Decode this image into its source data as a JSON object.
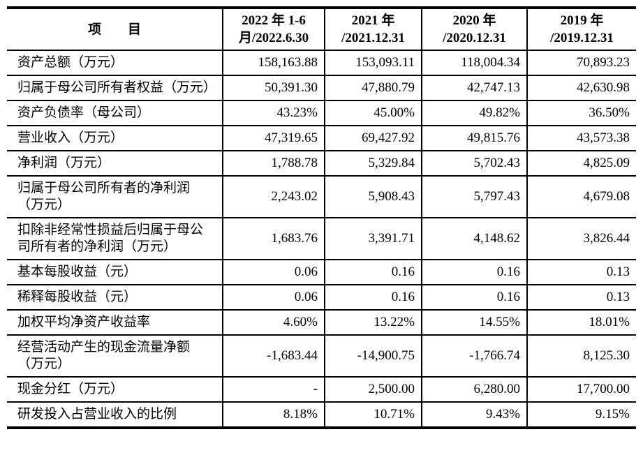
{
  "table": {
    "header": {
      "item_label": "项　　目",
      "periods": [
        "2022 年 1-6\n月/2022.6.30",
        "2021 年\n/2021.12.31",
        "2020 年\n/2020.12.31",
        "2019 年\n/2019.12.31"
      ]
    },
    "rows": [
      {
        "label": "资产总额（万元）",
        "values": [
          "158,163.88",
          "153,093.11",
          "118,004.34",
          "70,893.23"
        ]
      },
      {
        "label": "归属于母公司所有者权益（万元）",
        "values": [
          "50,391.30",
          "47,880.79",
          "42,747.13",
          "42,630.98"
        ]
      },
      {
        "label": "资产负债率（母公司）",
        "values": [
          "43.23%",
          "45.00%",
          "49.82%",
          "36.50%"
        ]
      },
      {
        "label": "营业收入（万元）",
        "values": [
          "47,319.65",
          "69,427.92",
          "49,815.76",
          "43,573.38"
        ]
      },
      {
        "label": "净利润（万元）",
        "values": [
          "1,788.78",
          "5,329.84",
          "5,702.43",
          "4,825.09"
        ]
      },
      {
        "label": "归属于母公司所有者的净利润（万元）",
        "values": [
          "2,243.02",
          "5,908.43",
          "5,797.43",
          "4,679.08"
        ]
      },
      {
        "label": "扣除非经常性损益后归属于母公司所有者的净利润（万元）",
        "values": [
          "1,683.76",
          "3,391.71",
          "4,148.62",
          "3,826.44"
        ]
      },
      {
        "label": "基本每股收益（元）",
        "values": [
          "0.06",
          "0.16",
          "0.16",
          "0.13"
        ]
      },
      {
        "label": "稀释每股收益（元）",
        "values": [
          "0.06",
          "0.16",
          "0.16",
          "0.13"
        ]
      },
      {
        "label": "加权平均净资产收益率",
        "values": [
          "4.60%",
          "13.22%",
          "14.55%",
          "18.01%"
        ]
      },
      {
        "label": "经营活动产生的现金流量净额（万元）",
        "values": [
          "-1,683.44",
          "-14,900.75",
          "-1,766.74",
          "8,125.30"
        ]
      },
      {
        "label": "现金分红（万元）",
        "values": [
          "-",
          "2,500.00",
          "6,280.00",
          "17,700.00"
        ]
      },
      {
        "label": "研发投入占营业收入的比例",
        "values": [
          "8.18%",
          "10.71%",
          "9.43%",
          "9.15%"
        ]
      }
    ],
    "colors": {
      "text": "#000000",
      "background": "#ffffff",
      "border": "#000000"
    }
  }
}
